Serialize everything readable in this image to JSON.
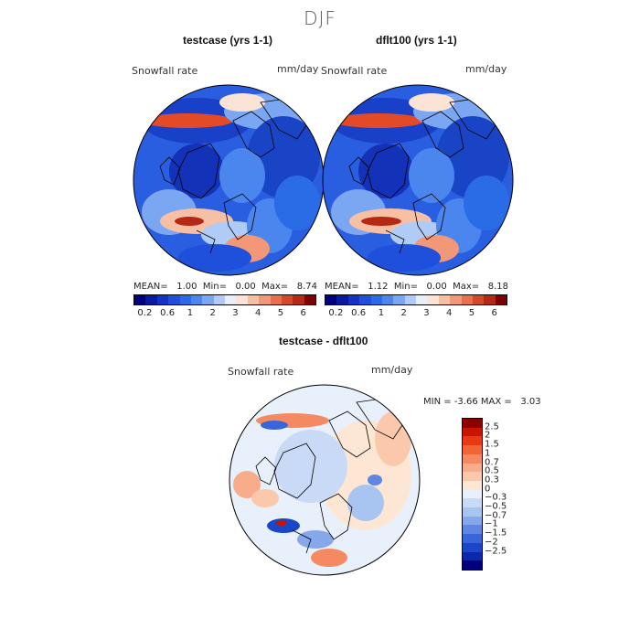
{
  "season": "DJF",
  "units": "mm/day",
  "variable": "Snowfall rate",
  "panels": [
    {
      "title": "testcase (yrs 1-1)",
      "mean_label": "MEAN=",
      "mean": "1.00",
      "min_label": "Min=",
      "min": "0.00",
      "max_label": "Max=",
      "max": "8.74"
    },
    {
      "title": "dflt100 (yrs 1-1)",
      "mean_label": "MEAN=",
      "mean": "1.12",
      "min_label": "Min=",
      "min": "0.00",
      "max_label": "Max=",
      "max": "8.18"
    }
  ],
  "diff": {
    "title": "testcase - dflt100",
    "min_label": "MIN =",
    "min": "-3.66",
    "max_label": "MAX =",
    "max": "3.03"
  },
  "colorbar_main": {
    "colors": [
      "#00007f",
      "#0a1aa0",
      "#1432c4",
      "#1e50dc",
      "#2a6ce6",
      "#4a86ee",
      "#7aa6f2",
      "#b0ccf6",
      "#e8eefa",
      "#fbe4d6",
      "#f7c0a4",
      "#f29878",
      "#e8704c",
      "#d44a28",
      "#b42814",
      "#7f0000"
    ],
    "ticks": [
      "0.2",
      "0.6",
      "1",
      "2",
      "3",
      "4",
      "5",
      "6"
    ]
  },
  "colorbar_diff": {
    "colors": [
      "#8b0000",
      "#c81400",
      "#e83a12",
      "#f06438",
      "#f58a62",
      "#f9ac8a",
      "#fcc8ac",
      "#fde6d4",
      "#e8f0fc",
      "#c8daf6",
      "#a8c4f0",
      "#86a8ea",
      "#5e86e2",
      "#3866d8",
      "#1a46c8",
      "#0a28a8",
      "#00007f"
    ],
    "ticks": [
      "2.5",
      "2",
      "1.5",
      "1",
      "0.7",
      "0.5",
      "0.3",
      "0",
      "−0.3",
      "−0.5",
      "−0.7",
      "−1",
      "−1.5",
      "−2",
      "−2.5"
    ]
  }
}
